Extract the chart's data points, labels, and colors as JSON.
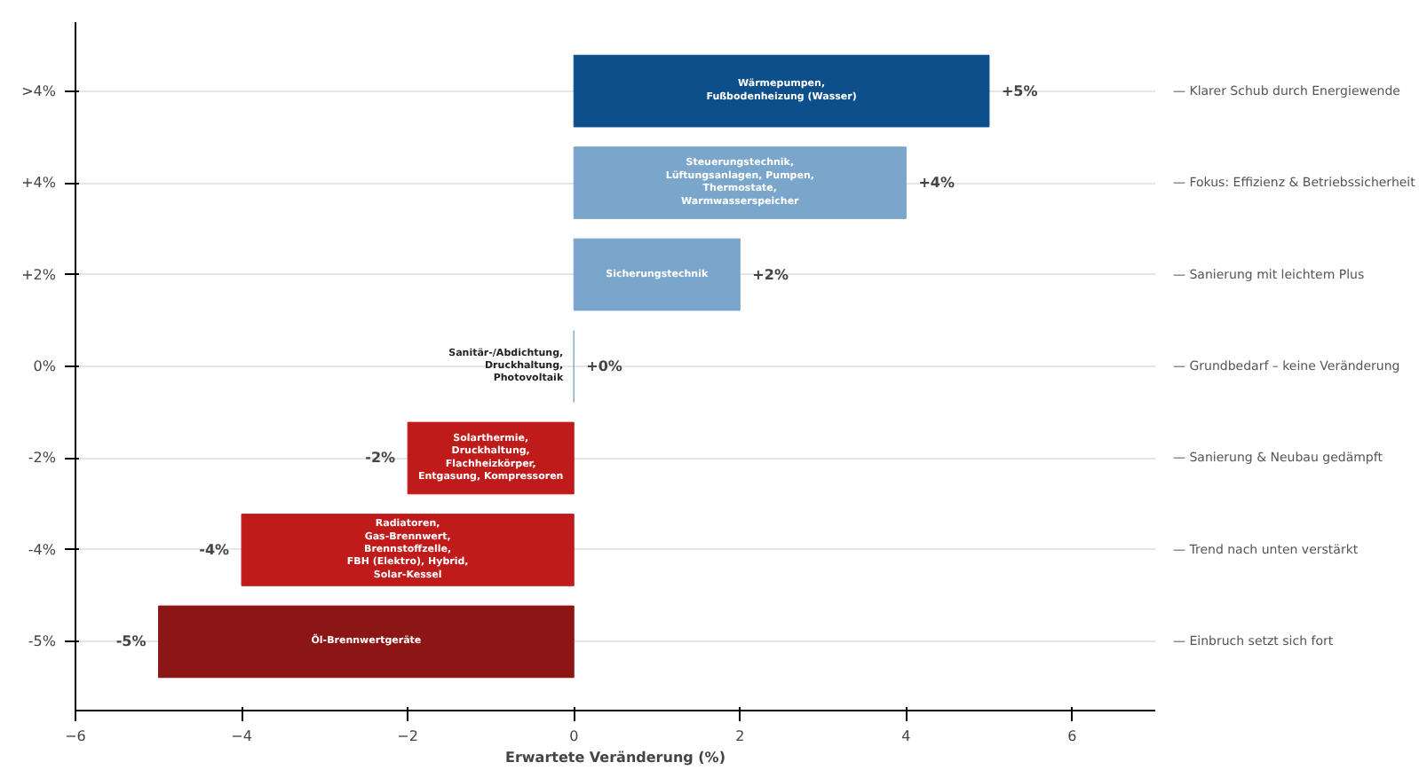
{
  "chart_data": {
    "type": "bar",
    "orientation": "horizontal",
    "xlabel": "Erwartete Veränderung (%)",
    "categories": [
      ">4%",
      "+4%",
      "+2%",
      "0%",
      "-2%",
      "-4%",
      "-5%"
    ],
    "values": [
      5,
      4,
      2,
      0,
      -2,
      -4,
      -5
    ],
    "colors": [
      "#0d4f8b",
      "#7aa6cc",
      "#7aa6cc",
      "#7aa6cc",
      "#c01b1b",
      "#c01b1b",
      "#8c1616"
    ],
    "value_labels": [
      "+5%",
      "+4%",
      "+2%",
      "+0%",
      "-2%",
      "-4%",
      "-5%"
    ],
    "xlim": [
      -6,
      7
    ],
    "xticks": [
      -6,
      -4,
      -2,
      0,
      2,
      4,
      6
    ],
    "grid": "y",
    "annotations": [
      "Wärmepumpen,\nFußbodenheizung (Wasser)",
      "Steuerungstechnik,\nLüftungsanlagen, Pumpen,\nThermostate,\nWarmwasserspeicher",
      "Sicherungstechnik",
      "Sanitär-/Abdichtung,\nDruckhaltung,\nPhotovoltaik",
      "Solarthermie,\nDruckhaltung,\nFlachheizkörper,\nEntgasung, Kompressoren",
      "Radiatoren,\nGas-Brennwert,\nBrennstoffzelle,\nFBH (Elektro), Hybrid,\nSolar-Kessel",
      "Öl-Brennwertgeräte",
      "— Klarer Schub durch Energiewende",
      "— Fokus: Effizienz & Betriebssicherheit",
      "— Sanierung mit leichtem Plus",
      "— Grundbedarf – keine Veränderung",
      "— Sanierung & Neubau gedämpft",
      "— Trend nach unten verstärkt",
      "— Einbruch setzt sich fort"
    ]
  }
}
